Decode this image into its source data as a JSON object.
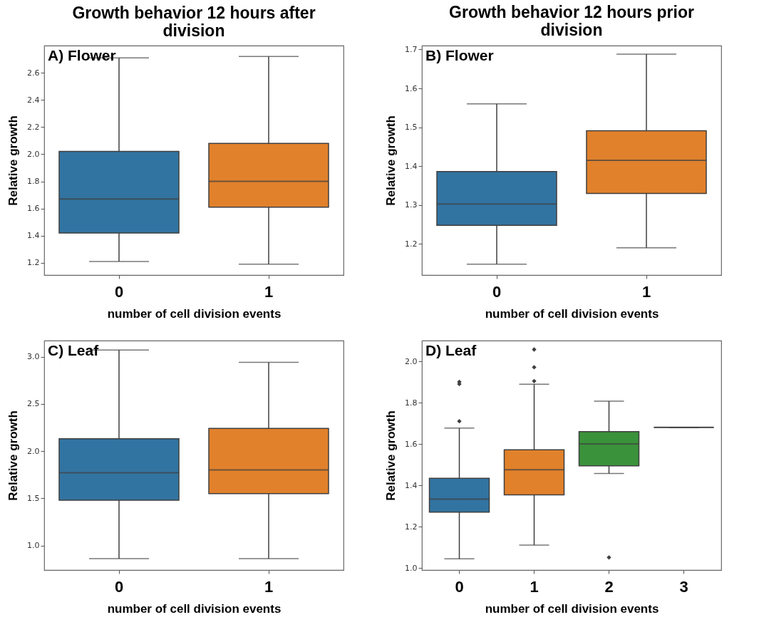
{
  "chart_data": [
    {
      "type": "box",
      "title": "Growth behavior 12 hours after division",
      "annotations": [
        "A) Flower"
      ],
      "xlabel": "number of cell division events",
      "ylabel": "Relative growth",
      "categories": [
        "0",
        "1"
      ],
      "colors": [
        "#3274a1",
        "#e1812c"
      ],
      "ylim": [
        1.11,
        2.8
      ],
      "yticks": [
        1.2,
        1.4,
        1.6,
        1.8,
        {
          "value": 2,
          "label": "2.0"
        },
        2.2,
        2.4,
        2.6
      ],
      "boxes": [
        {
          "low": 1.21,
          "q1": 1.42,
          "median": 1.67,
          "q3": 2.02,
          "high": 2.71
        },
        {
          "low": 1.19,
          "q1": 1.61,
          "median": 1.8,
          "q3": 2.08,
          "high": 2.72
        }
      ]
    },
    {
      "type": "box",
      "title": "Growth behavior 12 hours prior division",
      "annotations": [
        "B) Flower"
      ],
      "xlabel": "number of cell division events",
      "ylabel": "Relative growth",
      "categories": [
        "0",
        "1"
      ],
      "colors": [
        "#3274a1",
        "#e1812c"
      ],
      "ylim": [
        1.12,
        1.71
      ],
      "yticks": [
        1.2,
        1.3,
        1.4,
        1.5,
        1.6,
        1.7
      ],
      "boxes": [
        {
          "low": 1.148,
          "q1": 1.248,
          "median": 1.303,
          "q3": 1.386,
          "high": 1.56
        },
        {
          "low": 1.19,
          "q1": 1.33,
          "median": 1.415,
          "q3": 1.491,
          "high": 1.688
        }
      ]
    },
    {
      "type": "box",
      "annotations": [
        "C) Leaf"
      ],
      "xlabel": "number of cell division events",
      "ylabel": "Relative growth",
      "categories": [
        "0",
        "1"
      ],
      "colors": [
        "#3274a1",
        "#e1812c"
      ],
      "ylim": [
        0.74,
        3.17
      ],
      "yticks": [
        {
          "value": 1,
          "label": "1.0"
        },
        1.5,
        {
          "value": 2,
          "label": "2.0"
        },
        2.5,
        {
          "value": 3,
          "label": "3.0"
        }
      ],
      "boxes": [
        {
          "low": 0.86,
          "q1": 1.48,
          "median": 1.77,
          "q3": 2.13,
          "high": 3.07
        },
        {
          "low": 0.86,
          "q1": 1.55,
          "median": 1.8,
          "q3": 2.24,
          "high": 2.94
        }
      ]
    },
    {
      "type": "box",
      "annotations": [
        "D) Leaf"
      ],
      "xlabel": "number of cell division events",
      "ylabel": "Relative growth",
      "categories": [
        "0",
        "1",
        "2",
        "3"
      ],
      "colors": [
        "#3274a1",
        "#e1812c",
        "#3a923a",
        "#3f3f3f"
      ],
      "ylim": [
        0.99,
        2.1
      ],
      "yticks": [
        {
          "value": 1,
          "label": "1.0"
        },
        1.2,
        1.4,
        1.6,
        1.8,
        {
          "value": 2,
          "label": "2.0"
        }
      ],
      "marker": "diamond",
      "boxes": [
        {
          "low": 1.044,
          "q1": 1.27,
          "median": 1.333,
          "q3": 1.434,
          "high": 1.677,
          "outliers": [
            1.71,
            1.89,
            1.9
          ]
        },
        {
          "low": 1.111,
          "q1": 1.354,
          "median": 1.475,
          "q3": 1.572,
          "high": 1.889,
          "outliers": [
            1.904,
            1.971,
            2.057
          ]
        },
        {
          "low": 1.457,
          "q1": 1.494,
          "median": 1.6,
          "q3": 1.66,
          "high": 1.807,
          "outliers": [
            1.051
          ]
        },
        {
          "low": 1.68,
          "q1": 1.68,
          "median": 1.68,
          "q3": 1.68,
          "high": 1.68
        }
      ]
    }
  ]
}
